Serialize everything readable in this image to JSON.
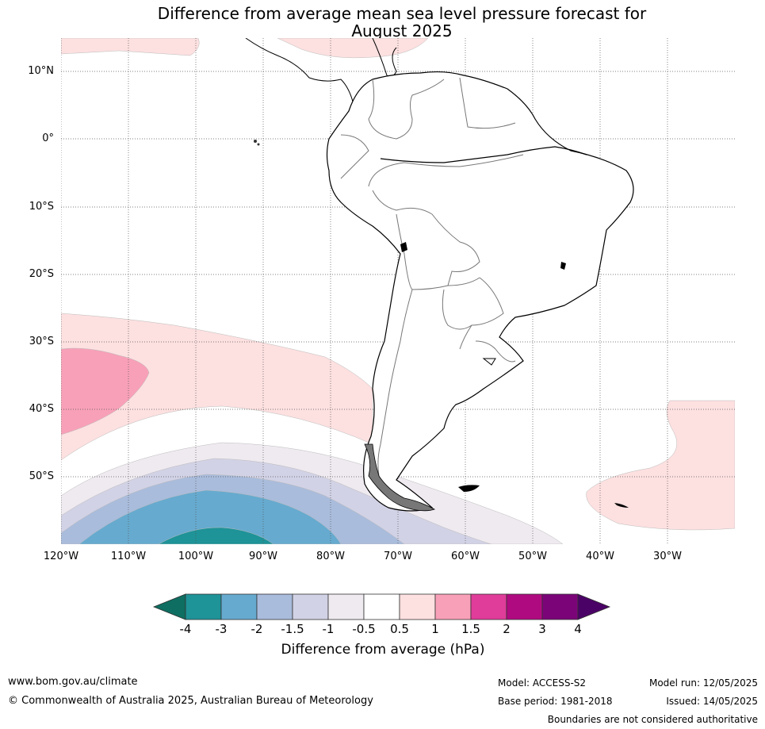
{
  "title_line1": "Difference from average mean sea level pressure forecast for",
  "title_line2": "August 2025",
  "lat_labels": [
    "10°N",
    "0°",
    "10°S",
    "20°S",
    "30°S",
    "40°S",
    "50°S"
  ],
  "lon_labels": [
    "120°W",
    "110°W",
    "100°W",
    "90°W",
    "80°W",
    "70°W",
    "60°W",
    "50°W",
    "40°W",
    "30°W"
  ],
  "colorbar": {
    "ticks": [
      "-4",
      "-3",
      "-2",
      "-1.5",
      "-1",
      "-0.5",
      "0.5",
      "1",
      "1.5",
      "2",
      "3",
      "4"
    ],
    "colors": [
      "#0d6e61",
      "#1e9398",
      "#66aacf",
      "#a9bcdc",
      "#d2d2e6",
      "#efeaf0",
      "#ffffff",
      "#fde0e0",
      "#f8a0b8",
      "#e03c9a",
      "#b00a80",
      "#7b0578",
      "#4b0266"
    ],
    "label": "Difference from average (hPa)"
  },
  "footer": {
    "website": "www.bom.gov.au/climate",
    "copyright": "© Commonwealth of Australia 2025, Australian Bureau of Meteorology",
    "model": "Model: ACCESS-S2",
    "base_period": "Base period: 1981-2018",
    "model_run": "Model run: 12/05/2025",
    "issued": "Issued: 14/05/2025",
    "boundaries": "Boundaries are not considered authoritative"
  }
}
